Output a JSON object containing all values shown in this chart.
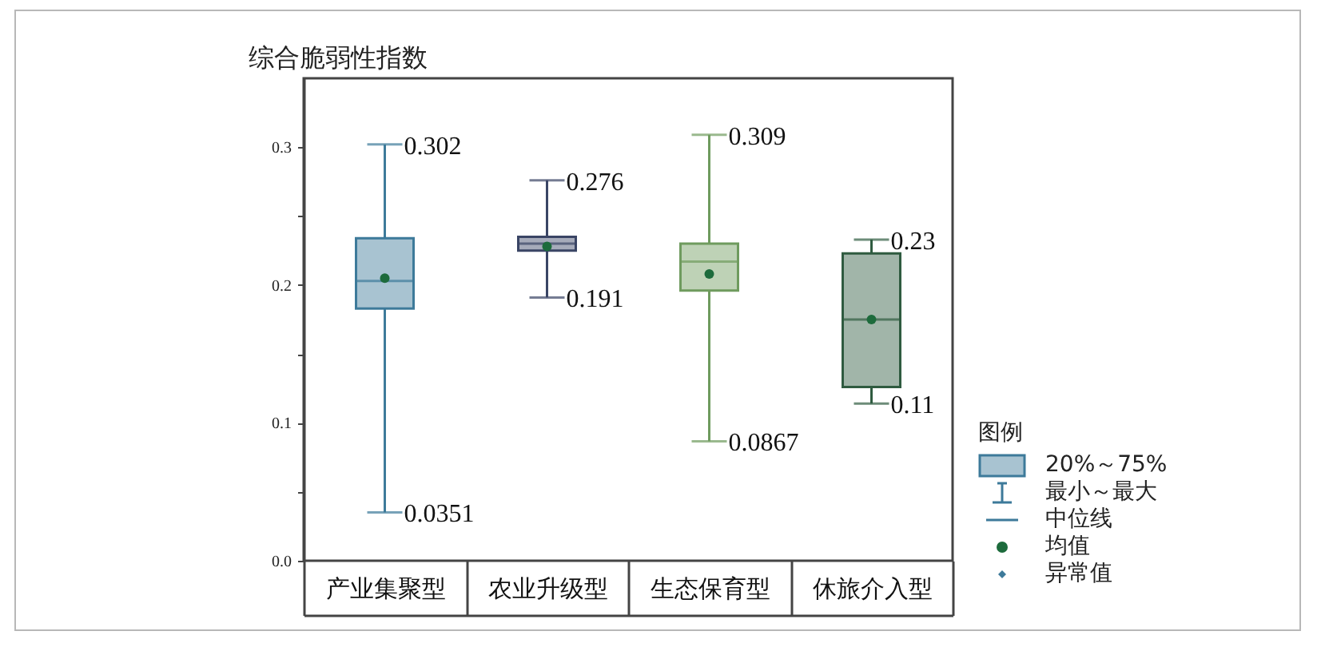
{
  "chart_data": {
    "type": "box",
    "ylabel": "综合脆弱性指数",
    "categories": [
      "产业集聚型",
      "农业升级型",
      "生态保育型",
      "休旅介入型"
    ],
    "ylim": [
      0,
      0.35
    ],
    "yticks": [
      {
        "value": 0,
        "label": "0.0"
      },
      {
        "value": 0.05,
        "label": null
      },
      0.1,
      {
        "value": 0.15,
        "label": null
      },
      0.2,
      {
        "value": 0.25,
        "label": null
      },
      0.3
    ],
    "legend": "bottom right",
    "legend_title": "图例",
    "series": [
      {
        "name": "20%～75%",
        "colors": [
          "#3d7a9a",
          "#3a4565",
          "#6f9b5e",
          "#2f5b40"
        ],
        "boxes": [
          {
            "low": 0.0351,
            "q1": 0.183,
            "median": 0.203,
            "q3": 0.234,
            "high": 0.302
          },
          {
            "low": 0.191,
            "q1": 0.225,
            "median": 0.23,
            "q3": 0.235,
            "high": 0.276
          },
          {
            "low": 0.0867,
            "q1": 0.196,
            "median": 0.217,
            "q3": 0.23,
            "high": 0.309
          },
          {
            "low": 0.114,
            "q1": 0.126,
            "median": 0.175,
            "q3": 0.223,
            "high": 0.233
          }
        ]
      },
      {
        "type": "scatter",
        "name": "均值",
        "color": "#1d6b3c",
        "marker": "circle",
        "x": [
          "产业集聚型",
          "农业升级型",
          "生态保育型",
          "休旅介入型"
        ],
        "values": [
          0.205,
          0.228,
          0.208,
          0.175
        ]
      }
    ],
    "annotations": [
      {
        "text": "0.302",
        "x": "产业集聚型",
        "y": 0.302
      },
      {
        "text": "0.0351",
        "x": "产业集聚型",
        "y": 0.0351
      },
      {
        "text": "0.276",
        "x": "农业升级型",
        "y": 0.276
      },
      {
        "text": "0.191",
        "x": "农业升级型",
        "y": 0.191
      },
      {
        "text": "0.309",
        "x": "生态保育型",
        "y": 0.309
      },
      {
        "text": "0.0867",
        "x": "生态保育型",
        "y": 0.0867
      },
      {
        "text": "0.23",
        "x": "休旅介入型",
        "y": 0.233
      },
      {
        "text": "0.11",
        "x": "休旅介入型",
        "y": 0.114
      },
      "最小～最大",
      "中位线",
      "异常值"
    ]
  }
}
